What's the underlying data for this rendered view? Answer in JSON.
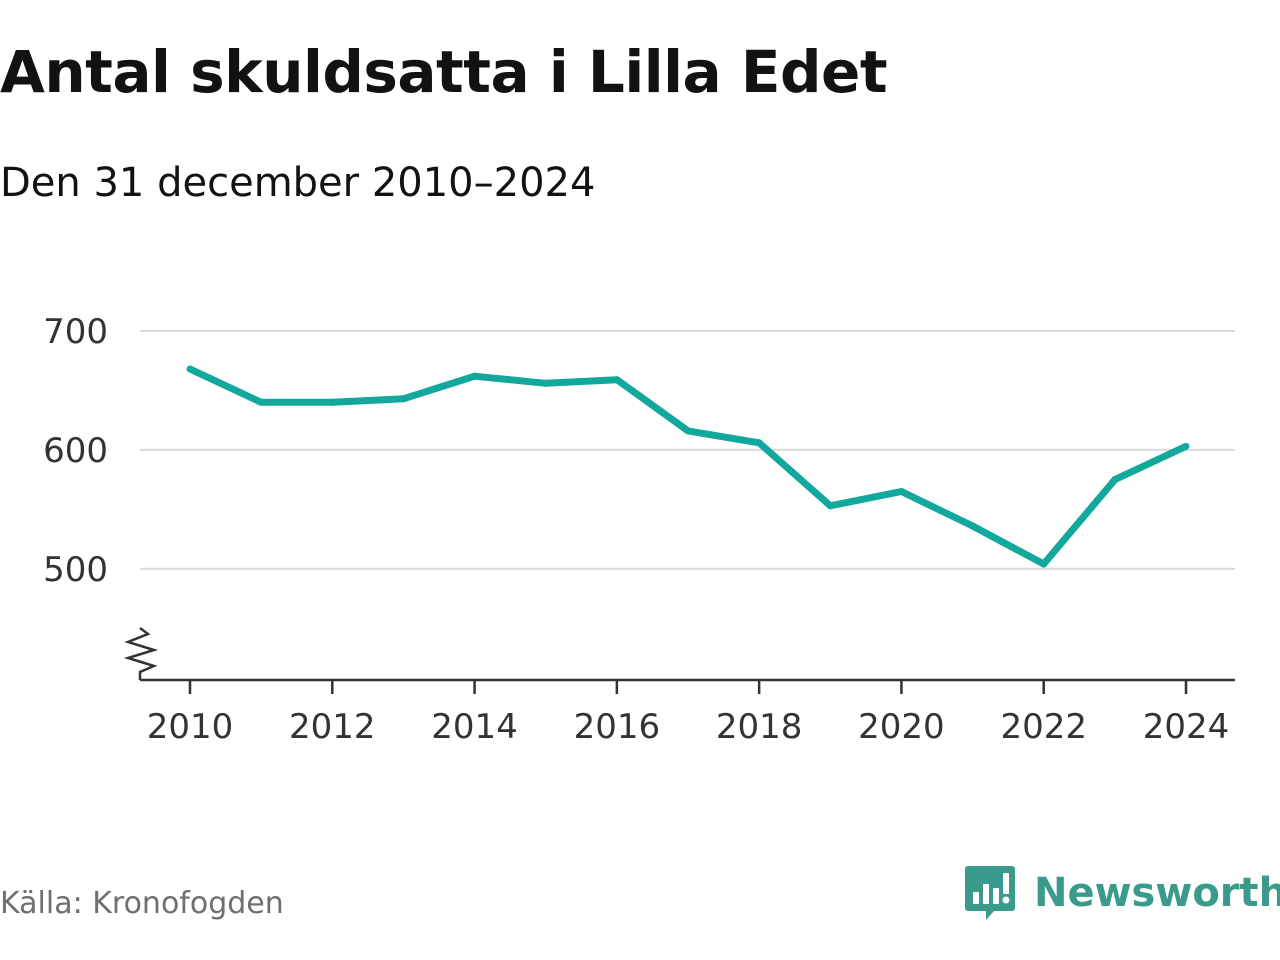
{
  "header": {
    "title": "Antal skuldsatta i Lilla Edet",
    "subtitle": "Den 31 december 2010–2024"
  },
  "footer": {
    "source": "Källa: Kronofogden",
    "brand": "Newsworthy",
    "brand_icon": "newsworthy-logo-icon"
  },
  "colors": {
    "line": "#12a89c",
    "grid": "#d9d9d9",
    "axis": "#333333",
    "brand": "#3a9a8c"
  },
  "chart_data": {
    "type": "line",
    "title": "Antal skuldsatta i Lilla Edet",
    "subtitle": "Den 31 december 2010–2024",
    "x": [
      2010,
      2011,
      2012,
      2013,
      2014,
      2015,
      2016,
      2017,
      2018,
      2019,
      2020,
      2021,
      2022,
      2023,
      2024
    ],
    "series": [
      {
        "values": [
          668,
          640,
          640,
          643,
          662,
          656,
          659,
          616,
          606,
          553,
          565,
          536,
          504,
          575,
          603
        ]
      }
    ],
    "x_ticks": [
      "2010",
      "2012",
      "2014",
      "2016",
      "2018",
      "2020",
      "2022",
      "2024"
    ],
    "y_ticks": [
      "500",
      "600",
      "700"
    ],
    "ylim": [
      430,
      700
    ],
    "xlim": [
      2010,
      2024
    ],
    "y_axis_break": true,
    "grid": true,
    "legend": "none"
  }
}
